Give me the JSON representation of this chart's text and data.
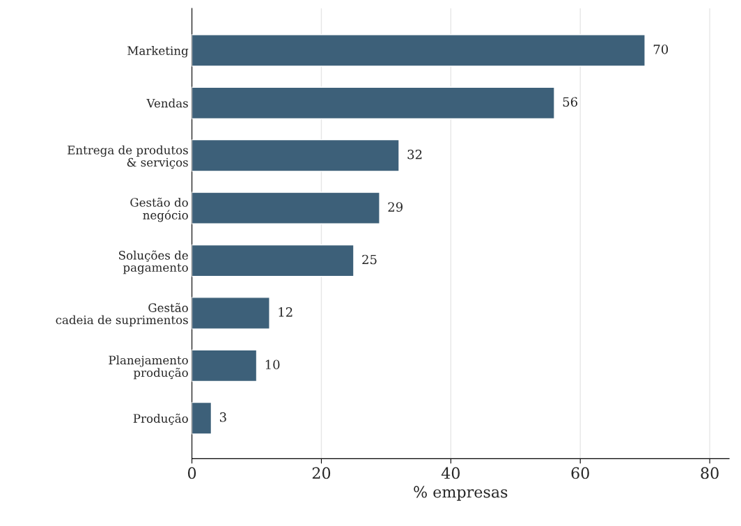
{
  "chart_data": {
    "type": "bar",
    "orientation": "horizontal",
    "xlabel": "% empresas",
    "categories": [
      "Marketing",
      "Vendas",
      "Entrega de produtos\n& serviços",
      "Gestão do\nnegócio",
      "Soluções de\npagamento",
      "Gestão\ncadeia de suprimentos",
      "Planejamento\nprodução",
      "Produção"
    ],
    "values": [
      70,
      56,
      32,
      29,
      25,
      12,
      10,
      3
    ],
    "color": "#3d6079",
    "xlim": [
      0,
      83
    ],
    "xticks": [
      0,
      20,
      40,
      60,
      80
    ],
    "grid": "x",
    "data_labels": true,
    "legend": false
  }
}
